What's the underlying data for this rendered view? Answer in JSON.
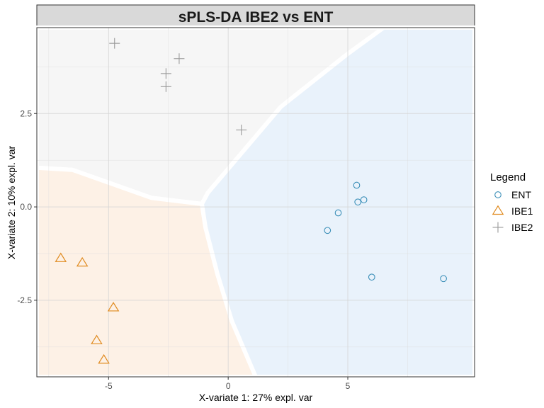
{
  "chart_data": {
    "type": "scatter",
    "title": "sPLS-DA IBE2 vs ENT",
    "xlabel": "X-variate 1: 27% expl. var",
    "ylabel": "X-variate 2: 10% expl. var",
    "xlim": [
      -8.0,
      10.3
    ],
    "ylim": [
      -4.55,
      4.8
    ],
    "x_ticks": [
      -5,
      0,
      5
    ],
    "x_tick_labels": [
      "-5",
      "0",
      "5"
    ],
    "y_ticks": [
      -2.5,
      0.0,
      2.5
    ],
    "y_tick_labels": [
      "-2.5",
      "0.0",
      "2.5"
    ],
    "grid": true,
    "legend": {
      "title": "Legend",
      "placement": "right"
    },
    "series": [
      {
        "name": "ENT",
        "marker": "circle",
        "color": "#3b8fb8",
        "x": [
          5.37,
          5.42,
          5.67,
          4.6,
          4.15,
          6.0,
          9.0
        ],
        "y": [
          0.58,
          0.13,
          0.19,
          -0.16,
          -0.63,
          -1.88,
          -1.92
        ]
      },
      {
        "name": "IBE1",
        "marker": "triangle",
        "color": "#e08a1e",
        "x": [
          -7.0,
          -6.1,
          -4.8,
          -5.5,
          -5.2
        ],
        "y": [
          -1.38,
          -1.5,
          -2.7,
          -3.58,
          -4.1
        ]
      },
      {
        "name": "IBE2",
        "marker": "plus",
        "color": "#999999",
        "x": [
          -4.75,
          -2.05,
          -2.6,
          -2.6,
          0.55
        ],
        "y": [
          4.38,
          3.97,
          3.57,
          3.22,
          2.06
        ]
      }
    ],
    "regions": [
      {
        "class": "IBE2",
        "color": "#f6f6f6",
        "polygon": [
          [
            -8.0,
            4.8
          ],
          [
            -8.0,
            1.05
          ],
          [
            -6.5,
            0.99
          ],
          [
            -3.2,
            0.24
          ],
          [
            -1.1,
            0.08
          ],
          [
            -0.85,
            0.38
          ],
          [
            2.2,
            2.68
          ],
          [
            5.0,
            4.1
          ],
          [
            6.5,
            4.8
          ]
        ]
      },
      {
        "class": "IBE1",
        "color": "#fdf1e6",
        "polygon": [
          [
            -8.0,
            1.05
          ],
          [
            -6.5,
            0.99
          ],
          [
            -3.2,
            0.24
          ],
          [
            -1.1,
            0.08
          ],
          [
            -0.95,
            -0.55
          ],
          [
            -0.45,
            -1.8
          ],
          [
            0.15,
            -3.05
          ],
          [
            1.15,
            -4.55
          ],
          [
            -8.0,
            -4.55
          ]
        ]
      },
      {
        "class": "ENT",
        "color": "#e9f2fb",
        "polygon": [
          [
            6.5,
            4.8
          ],
          [
            5.0,
            4.1
          ],
          [
            2.2,
            2.68
          ],
          [
            -0.85,
            0.38
          ],
          [
            -1.1,
            0.08
          ],
          [
            -0.95,
            -0.55
          ],
          [
            -0.45,
            -1.8
          ],
          [
            0.15,
            -3.05
          ],
          [
            1.15,
            -4.55
          ],
          [
            10.3,
            -4.55
          ],
          [
            10.3,
            4.8
          ]
        ]
      }
    ]
  }
}
